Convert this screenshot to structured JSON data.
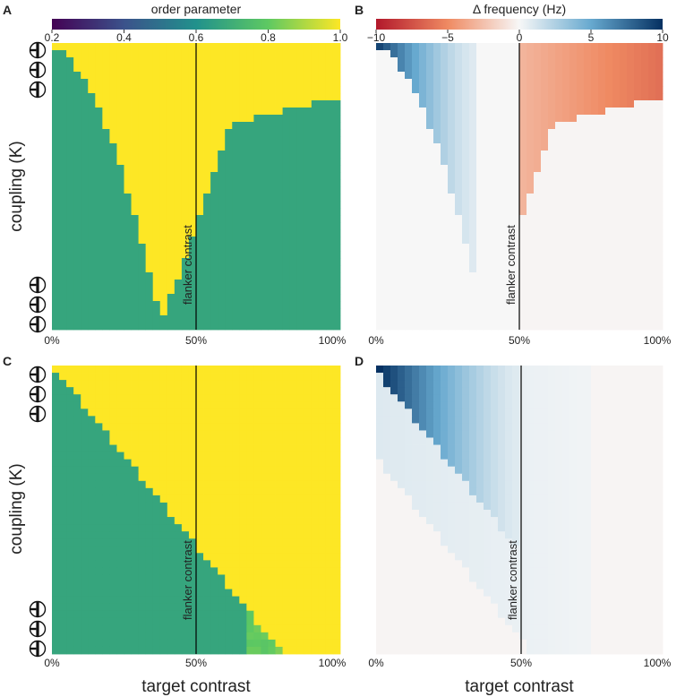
{
  "figure": {
    "panel_labels": [
      "A",
      "B",
      "C",
      "D"
    ],
    "ylabel": "coupling (K)",
    "xlabel": "target contrast",
    "flanker_label": "flanker contrast",
    "icons": [
      "grating-stimulus-icon"
    ]
  },
  "chart_data": [
    {
      "panel": "A",
      "type": "heatmap",
      "title": "order parameter",
      "x_ticks": [
        "0%",
        "50%",
        "100%"
      ],
      "xlim": [
        0,
        100
      ],
      "ylim": [
        "low",
        "high"
      ],
      "colorbar": {
        "label": "order parameter",
        "ticks": [
          "0.2",
          "0.4",
          "0.6",
          "0.8",
          "1.0"
        ],
        "range": [
          0.2,
          1.0
        ],
        "colormap": "viridis"
      },
      "reference_line_x": 50,
      "description_values": {
        "synchronized": 1.0,
        "unsynchronized": 0.67
      }
    },
    {
      "panel": "B",
      "type": "heatmap",
      "title": "Δ frequency (Hz)",
      "x_ticks": [
        "0%",
        "50%",
        "100%"
      ],
      "xlim": [
        0,
        100
      ],
      "colorbar": {
        "label": "Δ frequency (Hz)",
        "ticks": [
          "−10",
          "−5",
          "0",
          "5",
          "10"
        ],
        "range": [
          -10,
          10
        ],
        "colormap": "RdBu"
      },
      "reference_line_x": 50
    },
    {
      "panel": "C",
      "type": "heatmap",
      "x_ticks": [
        "0%",
        "50%",
        "100%"
      ],
      "xlim": [
        0,
        100
      ],
      "colormap": "viridis",
      "reference_line_x": 50
    },
    {
      "panel": "D",
      "type": "heatmap",
      "x_ticks": [
        "0%",
        "50%",
        "100%"
      ],
      "xlim": [
        0,
        100
      ],
      "colormap": "RdBu",
      "reference_line_x": 50
    }
  ]
}
